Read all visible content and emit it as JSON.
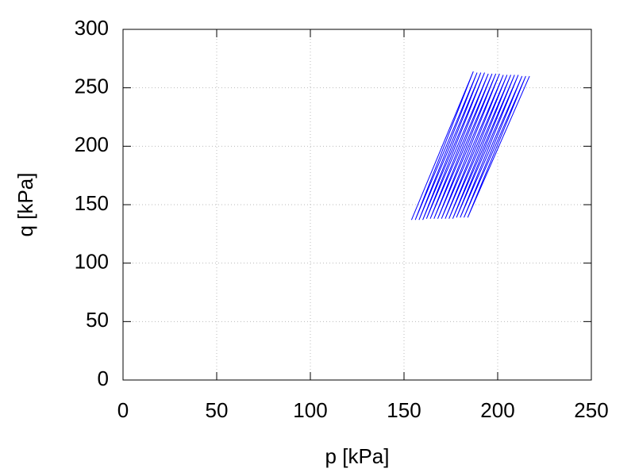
{
  "chart_data": {
    "type": "line",
    "xlabel": "p [kPa]",
    "ylabel": "q [kPa]",
    "x": [
      217,
      184,
      215,
      182,
      213,
      180,
      211,
      178,
      209,
      176,
      207,
      174,
      205,
      172,
      203,
      170,
      201,
      168,
      199,
      166,
      197,
      164,
      195,
      162,
      193,
      160,
      191,
      158,
      189,
      156,
      187,
      154
    ],
    "values": [
      260,
      139,
      260,
      139,
      260,
      139,
      261,
      139,
      261,
      138,
      261,
      138,
      261,
      138,
      261,
      138,
      262,
      138,
      262,
      138,
      262,
      138,
      262,
      138,
      263,
      137,
      263,
      137,
      263,
      137,
      264,
      137
    ],
    "color": "#0000ff",
    "xlim": [
      0,
      250
    ],
    "xticks": [
      0,
      50,
      100,
      150,
      200,
      250
    ],
    "ylim": [
      0,
      300
    ],
    "yticks": [
      0,
      50,
      100,
      150,
      200,
      250,
      300
    ],
    "grid": true
  }
}
